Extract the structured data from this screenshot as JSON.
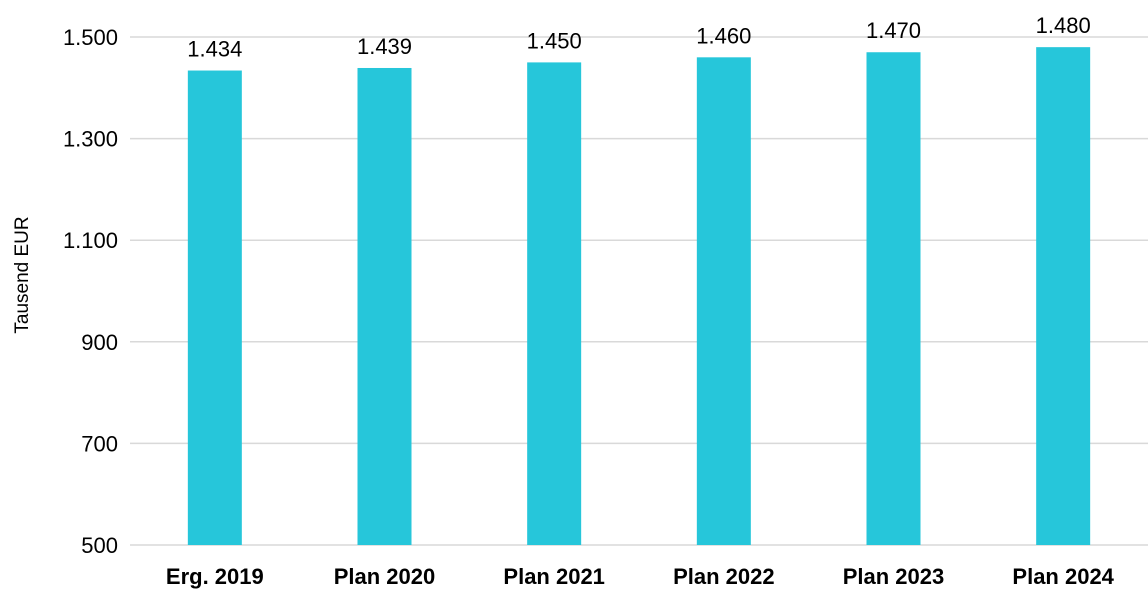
{
  "chart_data": {
    "type": "bar",
    "categories": [
      "Erg. 2019",
      "Plan 2020",
      "Plan 2021",
      "Plan 2022",
      "Plan 2023",
      "Plan 2024"
    ],
    "values": [
      1434,
      1439,
      1450,
      1460,
      1470,
      1480
    ],
    "data_labels": [
      "1.434",
      "1.439",
      "1.450",
      "1.460",
      "1.470",
      "1.480"
    ],
    "title": "",
    "xlabel": "",
    "ylabel": "Tausend EUR",
    "ylim": [
      500,
      1500
    ],
    "yticks": [
      500,
      700,
      900,
      1100,
      1300,
      1500
    ],
    "ytick_labels": [
      "500",
      "700",
      "900",
      "1.100",
      "1.300",
      "1.500"
    ],
    "grid": true,
    "legend": "none",
    "bar_color": "#26c6da"
  }
}
